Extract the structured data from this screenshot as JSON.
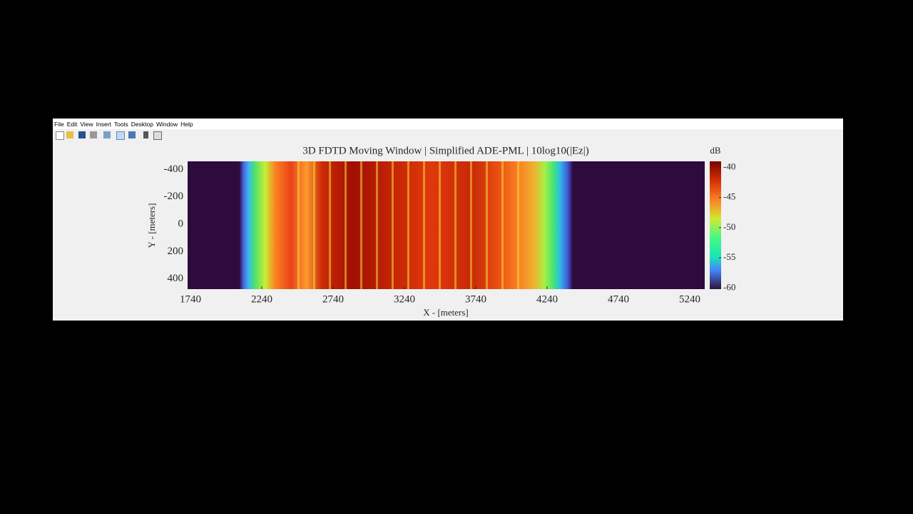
{
  "menu": [
    "File",
    "Edit",
    "View",
    "Insert",
    "Tools",
    "Desktop",
    "Window",
    "Help"
  ],
  "chart_data": {
    "type": "heatmap",
    "title": "3D FDTD Moving Window | Simplified ADE-PML | 10log10(|Ez|)",
    "xlabel": "X - [meters]",
    "ylabel": "Y - [meters]",
    "xlim": [
      1720,
      5345
    ],
    "xticks": [
      1740,
      2240,
      2740,
      3240,
      3740,
      4240,
      4740,
      5240
    ],
    "ylim": [
      -460,
      475
    ],
    "yticks": [
      -400,
      -200,
      0,
      200,
      400
    ],
    "y_reversed": true,
    "colorbar_label": "dB",
    "clim": [
      -60.2,
      -39
    ],
    "colorbar_ticks": [
      -40,
      -45,
      -50,
      -55,
      -60
    ]
  }
}
